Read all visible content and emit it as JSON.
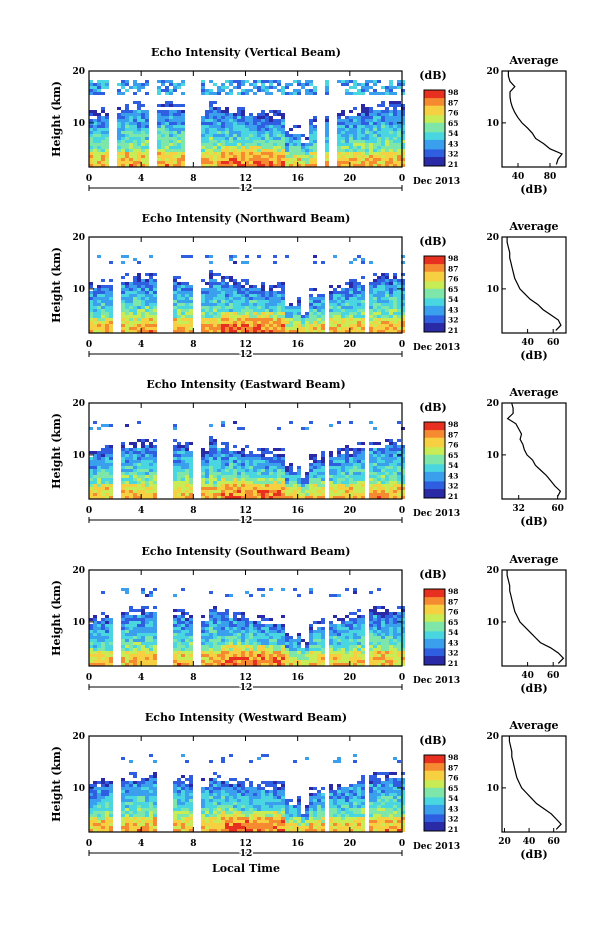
{
  "chart_data": [
    {
      "type": "heatmap",
      "title": "Echo Intensity (Vertical Beam)",
      "ylabel": "Height (km)",
      "xlabel": "",
      "x_ticks": [
        "0",
        "4",
        "8",
        "12",
        "16",
        "20",
        "0"
      ],
      "y_ticks": [
        "10",
        "20"
      ],
      "xlim": [
        0,
        24
      ],
      "ylim": [
        1.5,
        20
      ],
      "date_center": "12",
      "date_label": "Dec 2013",
      "colorbar_label": "(dB)",
      "colorbar_ticks": [
        "21",
        "32",
        "43",
        "54",
        "65",
        "76",
        "87",
        "98"
      ],
      "average": {
        "title": "Average",
        "xlabel": "(dB)",
        "x_ticks": [
          "40",
          "80"
        ],
        "y_ticks": [
          "10",
          "20"
        ],
        "xlim": [
          20,
          100
        ],
        "heights": [
          2,
          3,
          4,
          5,
          6,
          7,
          8,
          9,
          10,
          11,
          12,
          13,
          14,
          15,
          16,
          17,
          18,
          19,
          20
        ],
        "values": [
          88,
          90,
          95,
          80,
          72,
          62,
          58,
          52,
          45,
          40,
          36,
          33,
          31,
          30,
          30,
          36,
          30,
          28,
          28
        ]
      }
    },
    {
      "type": "heatmap",
      "title": "Echo Intensity (Northward Beam)",
      "ylabel": "Height (km)",
      "xlabel": "",
      "x_ticks": [
        "0",
        "4",
        "8",
        "12",
        "16",
        "20",
        "0"
      ],
      "y_ticks": [
        "10",
        "20"
      ],
      "xlim": [
        0,
        24
      ],
      "ylim": [
        1.5,
        20
      ],
      "date_center": "12",
      "date_label": "Dec 2013",
      "colorbar_label": "(dB)",
      "colorbar_ticks": [
        "21",
        "32",
        "43",
        "54",
        "65",
        "76",
        "87",
        "98"
      ],
      "average": {
        "title": "Average",
        "xlabel": "(dB)",
        "x_ticks": [
          "40",
          "60"
        ],
        "y_ticks": [
          "10",
          "20"
        ],
        "xlim": [
          20,
          70
        ],
        "heights": [
          2,
          3,
          4,
          5,
          6,
          7,
          8,
          9,
          10,
          11,
          12,
          13,
          14,
          15,
          16,
          17,
          18,
          19,
          20
        ],
        "values": [
          62,
          66,
          64,
          58,
          52,
          48,
          42,
          38,
          34,
          32,
          30,
          29,
          28,
          27,
          26,
          26,
          25,
          24,
          24
        ]
      }
    },
    {
      "type": "heatmap",
      "title": "Echo Intensity (Eastward Beam)",
      "ylabel": "Height (km)",
      "xlabel": "",
      "x_ticks": [
        "0",
        "4",
        "8",
        "12",
        "16",
        "20",
        "0"
      ],
      "y_ticks": [
        "10",
        "20"
      ],
      "xlim": [
        0,
        24
      ],
      "ylim": [
        1.5,
        20
      ],
      "date_center": "12",
      "date_label": "Dec 2013",
      "colorbar_label": "(dB)",
      "colorbar_ticks": [
        "21",
        "32",
        "43",
        "54",
        "65",
        "76",
        "87",
        "98"
      ],
      "average": {
        "title": "Average",
        "xlabel": "(dB)",
        "x_ticks": [
          "32",
          "60"
        ],
        "y_ticks": [
          "10",
          "20"
        ],
        "xlim": [
          20,
          66
        ],
        "heights": [
          2,
          3,
          4,
          5,
          6,
          7,
          8,
          9,
          10,
          11,
          12,
          13,
          14,
          15,
          16,
          17,
          18,
          19,
          20
        ],
        "values": [
          60,
          62,
          58,
          55,
          52,
          48,
          44,
          42,
          38,
          36,
          35,
          33,
          34,
          32,
          30,
          24,
          28,
          28,
          27
        ]
      }
    },
    {
      "type": "heatmap",
      "title": "Echo Intensity (Southward Beam)",
      "ylabel": "Height (km)",
      "xlabel": "",
      "x_ticks": [
        "0",
        "4",
        "8",
        "12",
        "16",
        "20",
        "0"
      ],
      "y_ticks": [
        "10",
        "20"
      ],
      "xlim": [
        0,
        24
      ],
      "ylim": [
        1.5,
        20
      ],
      "date_center": "12",
      "date_label": "Dec 2013",
      "colorbar_label": "(dB)",
      "colorbar_ticks": [
        "21",
        "32",
        "43",
        "54",
        "65",
        "76",
        "87",
        "98"
      ],
      "average": {
        "title": "Average",
        "xlabel": "(dB)",
        "x_ticks": [
          "40",
          "60"
        ],
        "y_ticks": [
          "10",
          "20"
        ],
        "xlim": [
          20,
          70
        ],
        "heights": [
          2,
          3,
          4,
          5,
          6,
          7,
          8,
          9,
          10,
          11,
          12,
          13,
          14,
          15,
          16,
          17,
          18,
          19,
          20
        ],
        "values": [
          64,
          68,
          64,
          58,
          50,
          46,
          42,
          38,
          34,
          32,
          30,
          29,
          28,
          27,
          26,
          26,
          25,
          24,
          24
        ]
      }
    },
    {
      "type": "heatmap",
      "title": "Echo Intensity (Westward Beam)",
      "ylabel": "Height (km)",
      "xlabel": "Local Time",
      "x_ticks": [
        "0",
        "4",
        "8",
        "12",
        "16",
        "20",
        "0"
      ],
      "y_ticks": [
        "10",
        "20"
      ],
      "xlim": [
        0,
        24
      ],
      "ylim": [
        1.5,
        20
      ],
      "date_center": "12",
      "date_label": "Dec 2013",
      "colorbar_label": "(dB)",
      "colorbar_ticks": [
        "21",
        "32",
        "43",
        "54",
        "65",
        "76",
        "87",
        "98"
      ],
      "average": {
        "title": "Average",
        "xlabel": "(dB)",
        "x_ticks": [
          "20",
          "40",
          "60"
        ],
        "y_ticks": [
          "10",
          "20"
        ],
        "xlim": [
          18,
          70
        ],
        "heights": [
          2,
          3,
          4,
          5,
          6,
          7,
          8,
          9,
          10,
          11,
          12,
          13,
          14,
          15,
          16,
          17,
          18,
          19,
          20
        ],
        "values": [
          62,
          66,
          62,
          58,
          52,
          46,
          42,
          38,
          34,
          32,
          30,
          29,
          28,
          27,
          26,
          26,
          25,
          24,
          24
        ]
      }
    }
  ],
  "colors": {
    "colormap": [
      "#2a2aa6",
      "#2f5fe0",
      "#3aa0ee",
      "#49d6e0",
      "#7ee6a8",
      "#c8ec55",
      "#f6d040",
      "#f58a30",
      "#e83020"
    ],
    "gap_fill": "#ffffff"
  }
}
